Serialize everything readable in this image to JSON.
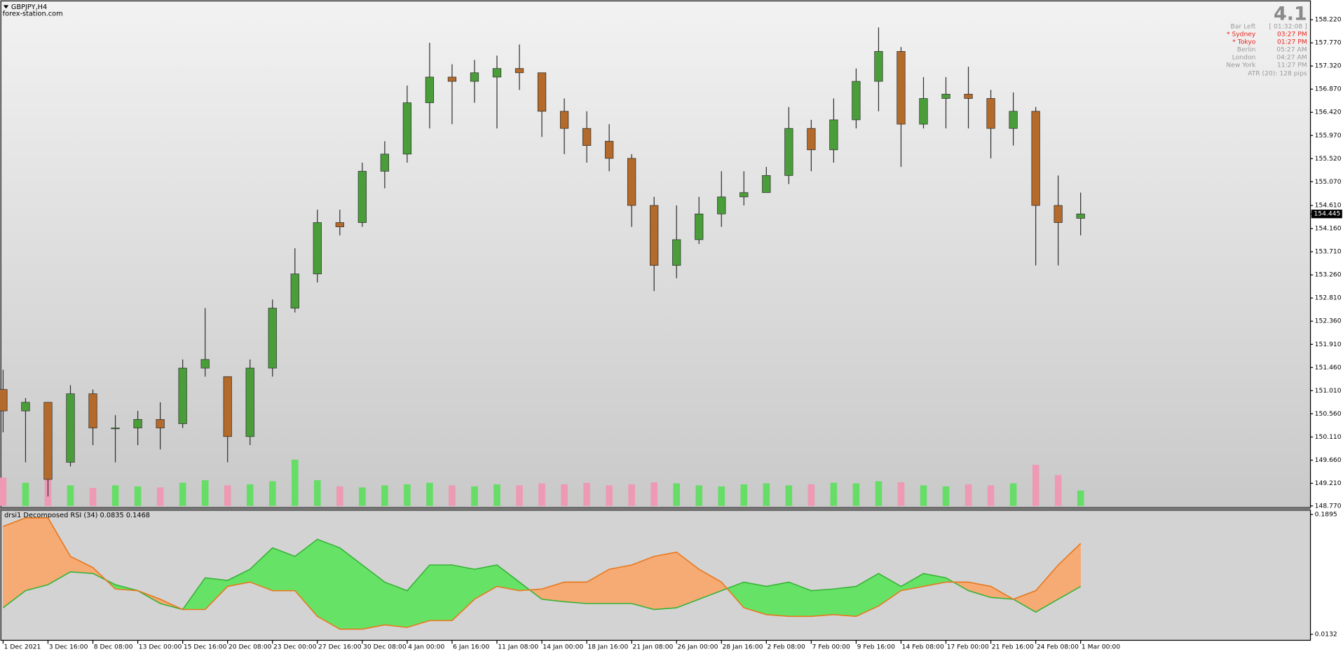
{
  "chart_data": [
    {
      "type": "candlestick",
      "title": "GBPJPY,H4",
      "subtitle": "forex-station.com",
      "x": [
        0,
        1,
        2,
        3,
        4,
        5,
        6,
        7,
        8,
        9,
        10,
        11,
        12,
        13,
        14,
        15,
        16,
        17,
        18,
        19,
        20,
        21,
        22,
        23,
        24,
        25,
        26,
        27,
        28,
        29,
        30,
        31,
        32,
        33,
        34,
        35,
        36,
        37,
        38,
        39,
        40,
        41,
        42,
        43,
        44,
        45,
        46,
        47,
        48
      ],
      "open": [
        151.033,
        150.617,
        150.784,
        149.619,
        150.95,
        150.285,
        150.285,
        150.451,
        150.368,
        151.449,
        151.283,
        150.118,
        151.449,
        152.614,
        153.279,
        154.277,
        154.277,
        155.275,
        155.608,
        156.606,
        157.105,
        157.022,
        157.105,
        157.272,
        157.189,
        156.44,
        156.107,
        155.858,
        155.525,
        154.61,
        153.445,
        153.945,
        154.445,
        154.776,
        154.86,
        155.192,
        156.107,
        155.691,
        156.274,
        157.022,
        157.604,
        156.19,
        156.689,
        156.773,
        156.689,
        156.107,
        156.44,
        154.61,
        154.36
      ],
      "high": [
        151.416,
        150.867,
        150.784,
        151.116,
        151.033,
        150.534,
        150.617,
        150.784,
        151.616,
        152.614,
        151.283,
        151.616,
        152.78,
        153.778,
        154.527,
        154.527,
        155.442,
        155.858,
        156.939,
        157.771,
        157.355,
        157.438,
        157.521,
        157.738,
        157.189,
        156.689,
        156.44,
        156.19,
        155.608,
        154.776,
        154.61,
        154.776,
        155.275,
        155.275,
        155.359,
        156.523,
        156.274,
        156.689,
        157.272,
        158.07,
        157.688,
        157.105,
        157.105,
        157.305,
        156.856,
        156.806,
        156.523,
        155.192,
        154.86
      ],
      "low": [
        150.201,
        149.619,
        148.954,
        149.536,
        149.952,
        149.619,
        149.952,
        149.869,
        150.285,
        151.283,
        149.619,
        149.952,
        151.283,
        152.53,
        153.113,
        154.028,
        154.194,
        154.943,
        155.442,
        156.107,
        156.19,
        156.606,
        156.107,
        156.856,
        155.941,
        155.608,
        155.442,
        155.275,
        154.194,
        152.946,
        153.196,
        153.861,
        154.194,
        154.61,
        154.86,
        155.026,
        155.275,
        155.442,
        156.107,
        156.44,
        155.359,
        156.107,
        156.107,
        156.107,
        155.525,
        155.775,
        153.445,
        153.445,
        154.028
      ],
      "close": [
        150.617,
        150.784,
        149.286,
        150.95,
        150.285,
        150.285,
        150.451,
        150.285,
        151.449,
        151.616,
        150.118,
        151.449,
        152.614,
        153.279,
        154.277,
        154.194,
        155.275,
        155.608,
        156.606,
        157.105,
        157.022,
        157.189,
        157.272,
        157.189,
        156.44,
        156.107,
        155.775,
        155.525,
        154.61,
        153.445,
        153.945,
        154.445,
        154.776,
        154.86,
        155.192,
        156.107,
        155.691,
        156.274,
        157.022,
        157.604,
        156.19,
        156.689,
        156.773,
        156.689,
        156.107,
        156.44,
        154.61,
        154.277,
        154.445
      ],
      "volume": [
        55,
        45,
        60,
        40,
        35,
        40,
        38,
        36,
        45,
        50,
        40,
        42,
        48,
        90,
        50,
        38,
        36,
        40,
        42,
        45,
        40,
        38,
        42,
        40,
        44,
        42,
        45,
        40,
        42,
        46,
        44,
        40,
        38,
        42,
        44,
        40,
        42,
        45,
        44,
        48,
        46,
        40,
        38,
        42,
        40,
        44,
        80,
        60,
        30
      ],
      "volume_lim": [
        0,
        100
      ],
      "up_color": "#4a9e3a",
      "down_color": "#b36a2a",
      "volume_up_color": "#66dd66",
      "volume_down_color": "#ee9ab4",
      "current_price": 154.445,
      "xlim": [
        -0.1,
        58.2
      ],
      "ylim": [
        148.737,
        158.553
      ],
      "yticks": [
        {
          "value": 158.22,
          "label": "158.220"
        },
        {
          "value": 157.77,
          "label": "157.770"
        },
        {
          "value": 157.32,
          "label": "157.320"
        },
        {
          "value": 156.87,
          "label": "156.870"
        },
        {
          "value": 156.42,
          "label": "156.420"
        },
        {
          "value": 155.97,
          "label": "155.970"
        },
        {
          "value": 155.52,
          "label": "155.520"
        },
        {
          "value": 155.07,
          "label": "155.070"
        },
        {
          "value": 154.61,
          "label": "154.610"
        },
        {
          "value": 154.16,
          "label": "154.160"
        },
        {
          "value": 153.71,
          "label": "153.710"
        },
        {
          "value": 153.26,
          "label": "153.260"
        },
        {
          "value": 152.81,
          "label": "152.810"
        },
        {
          "value": 152.36,
          "label": "152.360"
        },
        {
          "value": 151.91,
          "label": "151.910"
        },
        {
          "value": 151.46,
          "label": "151.460"
        },
        {
          "value": 151.01,
          "label": "151.010"
        },
        {
          "value": 150.56,
          "label": "150.560"
        },
        {
          "value": 150.11,
          "label": "150.110"
        },
        {
          "value": 149.66,
          "label": "149.660"
        },
        {
          "value": 149.21,
          "label": "149.210"
        },
        {
          "value": 148.77,
          "label": "148.770"
        }
      ],
      "xticks": [
        {
          "value": 0,
          "label": "1 Dec 2021"
        },
        {
          "value": 2,
          "label": "3 Dec 16:00"
        },
        {
          "value": 4,
          "label": "8 Dec 08:00"
        },
        {
          "value": 6,
          "label": "13 Dec 00:00"
        },
        {
          "value": 8,
          "label": "15 Dec 16:00"
        },
        {
          "value": 10,
          "label": "20 Dec 08:00"
        },
        {
          "value": 12,
          "label": "23 Dec 00:00"
        },
        {
          "value": 14,
          "label": "27 Dec 16:00"
        },
        {
          "value": 16,
          "label": "30 Dec 08:00"
        },
        {
          "value": 18,
          "label": "4 Jan 00:00"
        },
        {
          "value": 20,
          "label": "6 Jan 16:00"
        },
        {
          "value": 22,
          "label": "11 Jan 08:00"
        },
        {
          "value": 24,
          "label": "14 Jan 00:00"
        },
        {
          "value": 26,
          "label": "18 Jan 16:00"
        },
        {
          "value": 28,
          "label": "21 Jan 08:00"
        },
        {
          "value": 30,
          "label": "26 Jan 00:00"
        },
        {
          "value": 32,
          "label": "28 Jan 16:00"
        },
        {
          "value": 34,
          "label": "2 Feb 08:00"
        },
        {
          "value": 36,
          "label": "7 Feb 00:00"
        },
        {
          "value": 38,
          "label": "9 Feb 16:00"
        },
        {
          "value": 40,
          "label": "14 Feb 08:00"
        },
        {
          "value": 42,
          "label": "17 Feb 00:00"
        },
        {
          "value": 44,
          "label": "21 Feb 16:00"
        },
        {
          "value": 46,
          "label": "24 Feb 08:00"
        },
        {
          "value": 48,
          "label": "1 Mar 00:00"
        }
      ],
      "grid": false
    },
    {
      "type": "fill-between",
      "title": "drsi1 Decomposed RSI (34) 0.0835 0.1468",
      "ylim": [
        0.0132,
        0.1895
      ],
      "yticks": [
        0.1895,
        0.0132
      ],
      "series": [
        {
          "color": "#36b336",
          "fill": "#66e366",
          "values": [
            0.0522,
            0.0774,
            0.0862,
            0.1051,
            0.1026,
            0.0862,
            0.0774,
            0.0585,
            0.0497,
            0.0963,
            0.0925,
            0.1089,
            0.1404,
            0.1278,
            0.153,
            0.1404,
            0.1152,
            0.09,
            0.0774,
            0.1152,
            0.1152,
            0.1089,
            0.1152,
            0.09,
            0.0648,
            0.0611,
            0.0585,
            0.0585,
            0.0585,
            0.0497,
            0.0522,
            0.0648,
            0.0774,
            0.09,
            0.0837,
            0.09,
            0.0774,
            0.0799,
            0.0837,
            0.1026,
            0.0837,
            0.1026,
            0.0963,
            0.0774,
            0.0674,
            0.0648,
            0.0459,
            0.0648,
            0.0835
          ]
        },
        {
          "color": "#e8781c",
          "fill": "#f6aa74",
          "values": [
            0.1719,
            0.1845,
            0.1845,
            0.1278,
            0.1114,
            0.0799,
            0.0774,
            0.0648,
            0.0497,
            0.0497,
            0.0837,
            0.09,
            0.0774,
            0.0774,
            0.0396,
            0.0208,
            0.0208,
            0.0271,
            0.0233,
            0.0334,
            0.0334,
            0.0648,
            0.0837,
            0.0774,
            0.0799,
            0.09,
            0.09,
            0.1089,
            0.1152,
            0.1278,
            0.1341,
            0.1089,
            0.09,
            0.0522,
            0.0422,
            0.0396,
            0.0396,
            0.0422,
            0.0396,
            0.0548,
            0.0774,
            0.0837,
            0.09,
            0.09,
            0.0837,
            0.0648,
            0.0774,
            0.1152,
            0.1468
          ]
        }
      ]
    }
  ],
  "info_panel": {
    "version": "4.1",
    "rows": [
      [
        "Bar Left",
        "[ 01:32:08 ]"
      ],
      [
        "* Sydney",
        "03:27 PM"
      ],
      [
        "* Tokyo",
        "01:27 PM"
      ],
      [
        "Berlin",
        "05:27 AM"
      ],
      [
        "London",
        "04:27 AM"
      ],
      [
        "New York",
        "11:27 PM"
      ]
    ],
    "atr": "ATR (20): 128 pips"
  }
}
